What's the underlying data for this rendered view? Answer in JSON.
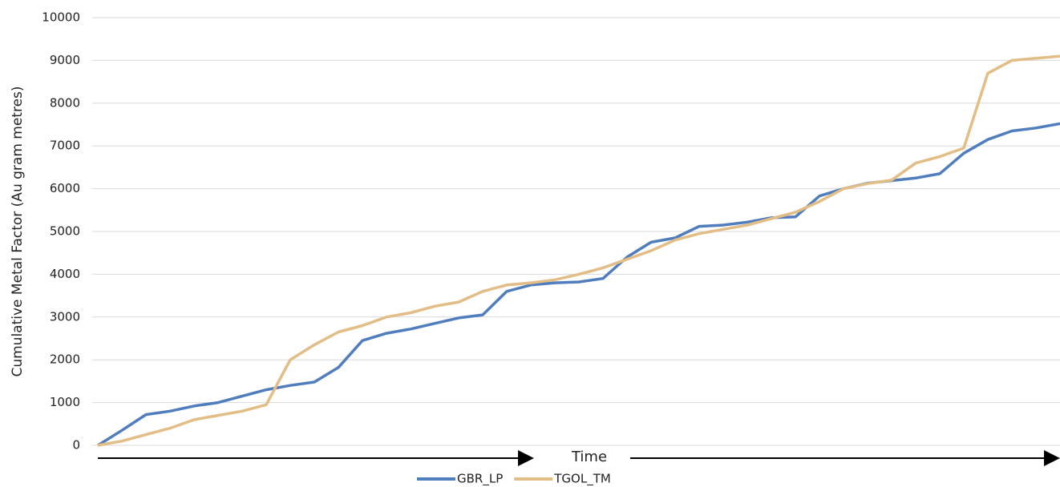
{
  "chart_data": {
    "type": "line",
    "y_label": "Cumulative Metal Factor (Au gram metres)",
    "x_label": "Time",
    "series": [
      {
        "name": "GBR_LP",
        "color": "#4f7dbd",
        "values": [
          0,
          350,
          720,
          800,
          920,
          1000,
          1150,
          1300,
          1400,
          1480,
          1820,
          2450,
          2620,
          2720,
          2850,
          2980,
          3050,
          3600,
          3750,
          3800,
          3820,
          3900,
          4400,
          4750,
          4850,
          5120,
          5150,
          5220,
          5320,
          5340,
          5830,
          6000,
          6130,
          6190,
          6250,
          6350,
          6830,
          7150,
          7350,
          7420,
          7520
        ]
      },
      {
        "name": "TGOL_TM",
        "color": "#e2bd85",
        "values": [
          0,
          100,
          250,
          400,
          600,
          700,
          800,
          950,
          2000,
          2350,
          2650,
          2800,
          3000,
          3100,
          3250,
          3350,
          3600,
          3750,
          3800,
          3870,
          4000,
          4150,
          4350,
          4550,
          4800,
          4950,
          5050,
          5150,
          5300,
          5450,
          5700,
          6000,
          6120,
          6200,
          6600,
          6750,
          6950,
          8700,
          9000,
          9050,
          9100
        ]
      }
    ],
    "ylim": [
      0,
      10000
    ],
    "yticks": [
      0,
      1000,
      2000,
      3000,
      4000,
      5000,
      6000,
      7000,
      8000,
      9000,
      10000
    ],
    "grid": true
  }
}
